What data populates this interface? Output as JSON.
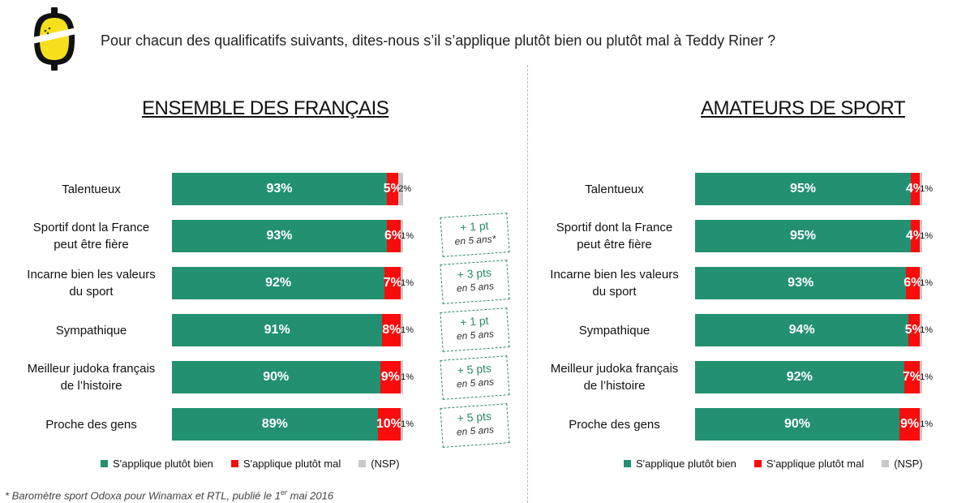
{
  "question": "Pour chacun des qualificatifs suivants, dites-nous s’il s’applique plutôt bien ou plutôt mal à Teddy Riner ?",
  "colors": {
    "good": "#239072",
    "bad": "#f80c0c",
    "nsp": "#c8c8c8",
    "evolution": "#2a8a6a"
  },
  "legend": {
    "good": "S'applique plutôt bien",
    "bad": "S'applique plutôt mal",
    "nsp": "(NSP)"
  },
  "evolutions": [
    {
      "value": "+ 1 pt",
      "period": "en 5 ans*"
    },
    {
      "value": "+ 3 pts",
      "period": "en 5 ans"
    },
    {
      "value": "+ 1 pt",
      "period": "en 5 ans"
    },
    {
      "value": "+ 5 pts",
      "period": "en 5 ans"
    },
    {
      "value": "+ 5 pts",
      "period": "en 5 ans"
    }
  ],
  "footnote": {
    "text_before": "* Baromètre sport Odoxa pour Winamax et RTL, publié le 1",
    "sup": "er",
    "text_after": " mai 2016"
  },
  "chart_data": [
    {
      "type": "bar",
      "orientation": "horizontal-stacked",
      "title": "ENSEMBLE DES FRANÇAIS",
      "categories": [
        [
          "Talentueux"
        ],
        [
          "Sportif dont la France",
          "peut être fière"
        ],
        [
          "Incarne bien les valeurs",
          "du sport"
        ],
        [
          "Sympathique"
        ],
        [
          "Meilleur judoka français",
          "de l’histoire"
        ],
        [
          "Proche des gens"
        ]
      ],
      "series": [
        {
          "name": "S'applique plutôt bien",
          "values": [
            93,
            93,
            92,
            91,
            90,
            89
          ],
          "labels": [
            "93%",
            "93%",
            "92%",
            "91%",
            "90%",
            "89%"
          ]
        },
        {
          "name": "S'applique plutôt mal",
          "values": [
            5,
            6,
            7,
            8,
            9,
            10
          ],
          "labels": [
            "5%",
            "6%",
            "7%",
            "8%",
            "9%",
            "10%"
          ]
        },
        {
          "name": "(NSP)",
          "values": [
            2,
            1,
            1,
            1,
            1,
            1
          ],
          "labels": [
            "2%",
            "1%",
            "1%",
            "1%",
            "1%",
            "1%"
          ]
        }
      ],
      "xlim": [
        0,
        100
      ]
    },
    {
      "type": "bar",
      "orientation": "horizontal-stacked",
      "title": "AMATEURS DE SPORT",
      "categories": [
        [
          "Talentueux"
        ],
        [
          "Sportif dont la France",
          "peut être fière"
        ],
        [
          "Incarne bien les valeurs",
          "du sport"
        ],
        [
          "Sympathique"
        ],
        [
          "Meilleur judoka français",
          "de l’histoire"
        ],
        [
          "Proche des gens"
        ]
      ],
      "series": [
        {
          "name": "S'applique plutôt bien",
          "values": [
            95,
            95,
            93,
            94,
            92,
            90
          ],
          "labels": [
            "95%",
            "95%",
            "93%",
            "94%",
            "92%",
            "90%"
          ]
        },
        {
          "name": "S'applique plutôt mal",
          "values": [
            4,
            4,
            6,
            5,
            7,
            9
          ],
          "labels": [
            "4%",
            "4%",
            "6%",
            "5%",
            "7%",
            "9%"
          ]
        },
        {
          "name": "(NSP)",
          "values": [
            1,
            1,
            1,
            1,
            1,
            1
          ],
          "labels": [
            "1%",
            "1%",
            "1%",
            "1%",
            "1%",
            "1%"
          ]
        }
      ],
      "xlim": [
        0,
        100
      ]
    }
  ]
}
